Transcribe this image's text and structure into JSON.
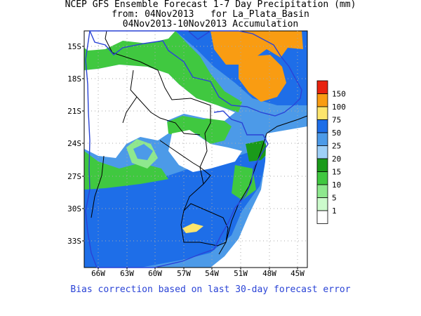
{
  "title": {
    "line1": "NCEP GFS Ensemble Forecast 1-7 Day Precipitation (mm)",
    "line2": "from: 04Nov2013   for La_Plata_Basin",
    "line3": "04Nov2013-10Nov2013 Accumulation"
  },
  "footnote": "Bias correction based on last 30-day forecast error",
  "map": {
    "lat_labels": [
      "15S",
      "18S",
      "21S",
      "24S",
      "27S",
      "30S",
      "33S"
    ],
    "lon_labels": [
      "66W",
      "63W",
      "60W",
      "57W",
      "54W",
      "51W",
      "48W",
      "45W"
    ]
  },
  "legend": {
    "unit": "mm",
    "levels": [
      {
        "label": "150",
        "color": "#e8230f"
      },
      {
        "label": "100",
        "color": "#f99c12"
      },
      {
        "label": "75",
        "color": "#fde56d"
      },
      {
        "label": "50",
        "color": "#1e6ee8"
      },
      {
        "label": "25",
        "color": "#4c9ae8"
      },
      {
        "label": "20",
        "color": "#9fd0f8"
      },
      {
        "label": "15",
        "color": "#1a9a1a"
      },
      {
        "label": "10",
        "color": "#40c840"
      },
      {
        "label": "5",
        "color": "#8ee88e"
      },
      {
        "label": "1",
        "color": "#ccfbcc"
      }
    ],
    "bottom_color": "#ffffff"
  },
  "colors": {
    "basin_outline": "#2a43d6",
    "borders": "#000000",
    "grid": "#aaaaaa"
  }
}
